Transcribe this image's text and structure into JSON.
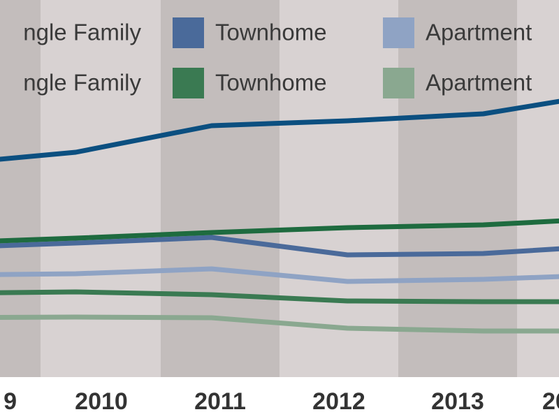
{
  "chart_data": {
    "type": "line",
    "categories": [
      "9",
      "2010",
      "2011",
      "2012",
      "2013",
      "20"
    ],
    "ylim": [
      0,
      540
    ],
    "series": [
      {
        "name": "ngle Family",
        "color": "#0b4f80",
        "values": [
          304,
          322,
          360,
          367,
          377,
          409
        ]
      },
      {
        "name": "Townhome",
        "color": "#4a6a9a",
        "values": [
          185,
          192,
          200,
          175,
          177,
          189
        ]
      },
      {
        "name": "Apartment",
        "color": "#8fa3c4",
        "values": [
          146,
          148,
          155,
          137,
          140,
          147
        ]
      },
      {
        "name": "ngle Family",
        "color": "#1e6b3f",
        "values": [
          192,
          199,
          207,
          214,
          218,
          228
        ]
      },
      {
        "name": "Townhome",
        "color": "#3a7a52",
        "values": [
          120,
          122,
          118,
          109,
          108,
          108
        ]
      },
      {
        "name": "Apartment",
        "color": "#8aa890",
        "values": [
          85,
          86,
          85,
          70,
          66,
          66
        ]
      }
    ]
  }
}
